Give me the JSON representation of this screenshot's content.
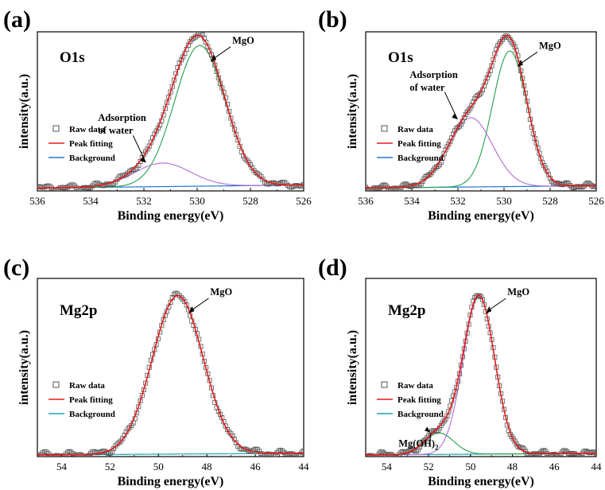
{
  "chart_data": [
    {
      "panel": "(a)",
      "type": "line",
      "core_label": "O1s",
      "xlabel": "Binding energy(eV)",
      "ylabel": "intensity(a.u.)",
      "xlim": [
        536,
        526
      ],
      "xticks": [
        "536",
        "534",
        "532",
        "530",
        "528",
        "526"
      ],
      "ylim": [
        0,
        1.08
      ],
      "background": [
        0.02,
        0.04
      ],
      "components": [
        {
          "color": "#22a04a",
          "center": 529.9,
          "amplitude": 0.955,
          "sigma": 0.95
        },
        {
          "color": "#b26bd6",
          "center": 531.3,
          "amplitude": 0.16,
          "sigma": 1.05
        }
      ],
      "series": [
        {
          "name": "Raw data",
          "style": "square-markers",
          "color": "#555555"
        },
        {
          "name": "Peak fitting",
          "style": "line",
          "color": "#e41a1c"
        },
        {
          "name": "Background",
          "style": "line",
          "color": "#1f78d1"
        }
      ],
      "annotations": [
        {
          "text": [
            "MgO"
          ],
          "peak": 0
        },
        {
          "text": [
            "Adsorption",
            "of water"
          ],
          "peak": 1
        }
      ]
    },
    {
      "panel": "(b)",
      "type": "line",
      "core_label": "O1s",
      "xlabel": "Binding energy(eV)",
      "ylabel": "intensity(a.u.)",
      "xlim": [
        536,
        526
      ],
      "xticks": [
        "536",
        "534",
        "532",
        "530",
        "528",
        "526"
      ],
      "ylim": [
        0,
        1.08
      ],
      "background": [
        0.02,
        0.035
      ],
      "components": [
        {
          "color": "#22a04a",
          "center": 529.75,
          "amplitude": 0.92,
          "sigma": 0.75
        },
        {
          "color": "#b26bd6",
          "center": 531.45,
          "amplitude": 0.47,
          "sigma": 0.95
        }
      ],
      "series": [
        {
          "name": "Raw data",
          "style": "square-markers",
          "color": "#555555"
        },
        {
          "name": "Peak fitting",
          "style": "line",
          "color": "#e41a1c"
        },
        {
          "name": "Background",
          "style": "line",
          "color": "#1f78d1"
        }
      ],
      "annotations": [
        {
          "text": [
            "MgO"
          ],
          "peak": 0
        },
        {
          "text": [
            "Adsorption",
            "of water"
          ],
          "peak": 1
        }
      ]
    },
    {
      "panel": "(c)",
      "type": "line",
      "core_label": "Mg2p",
      "xlabel": "Binding energy(eV)",
      "ylabel": "intensity(a.u.)",
      "xlim": [
        55,
        44
      ],
      "xticks": [
        "54",
        "52",
        "50",
        "48",
        "46",
        "44"
      ],
      "ylim": [
        0,
        1.08
      ],
      "background": [
        0.01,
        0.02
      ],
      "components": [
        {
          "color": "#e41a1c",
          "center": 49.2,
          "amplitude": 0.96,
          "sigma": 1.05
        }
      ],
      "series": [
        {
          "name": "Raw data",
          "style": "square-markers",
          "color": "#555555"
        },
        {
          "name": "Peak fitting",
          "style": "line",
          "color": "#e41a1c"
        },
        {
          "name": "Background",
          "style": "line",
          "color": "#1aa3b5"
        }
      ],
      "annotations": [
        {
          "text": [
            "MgO"
          ],
          "peak": 0
        }
      ]
    },
    {
      "panel": "(d)",
      "type": "line",
      "core_label": "Mg2p",
      "xlabel": "Binding energy(eV)",
      "ylabel": "intensity(a.u.)",
      "xlim": [
        55,
        44
      ],
      "xticks": [
        "54",
        "52",
        "50",
        "48",
        "46",
        "44"
      ],
      "ylim": [
        0,
        1.08
      ],
      "background": [
        0.01,
        0.02
      ],
      "components": [
        {
          "color": "#b26bd6",
          "center": 49.6,
          "amplitude": 0.96,
          "sigma": 0.75
        },
        {
          "color": "#22a04a",
          "center": 51.5,
          "amplitude": 0.13,
          "sigma": 0.7
        }
      ],
      "series": [
        {
          "name": "Raw data",
          "style": "square-markers",
          "color": "#555555"
        },
        {
          "name": "Peak fitting",
          "style": "line",
          "color": "#e41a1c"
        },
        {
          "name": "Background",
          "style": "line",
          "color": "#1aa3b5"
        }
      ],
      "annotations": [
        {
          "text": [
            "MgO"
          ],
          "peak": 0
        },
        {
          "text": [
            "Mg(OH)",
            "2"
          ],
          "peak": 1,
          "subscript": true
        }
      ]
    }
  ]
}
